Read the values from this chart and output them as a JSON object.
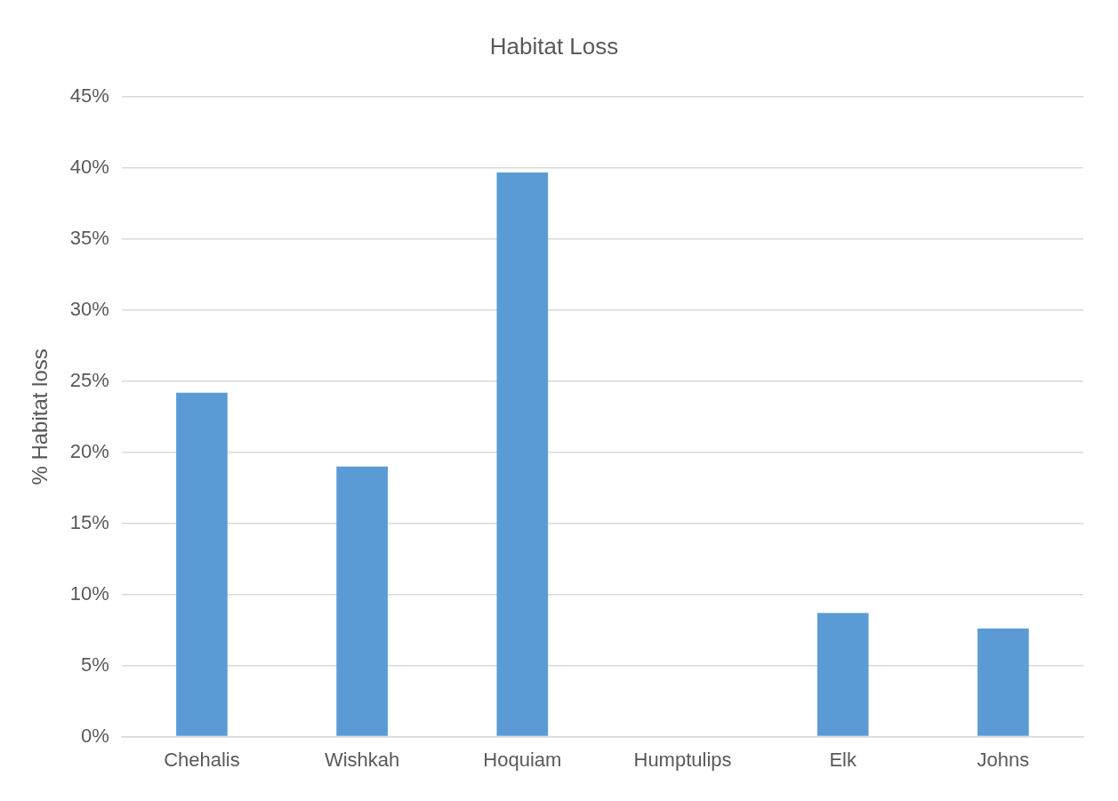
{
  "chart_data": {
    "type": "bar",
    "title": "Habitat Loss",
    "ylabel": "% Habitat loss",
    "categories": [
      "Chehalis",
      "Wishkah",
      "Hoquiam",
      "Humptulips",
      "Elk",
      "Johns"
    ],
    "values": [
      24.2,
      19.0,
      39.7,
      0,
      8.7,
      7.6
    ],
    "color": "#5b9bd5",
    "ylim": [
      0,
      45
    ],
    "yticks": [
      {
        "value": 0,
        "label": "0%"
      },
      {
        "value": 5,
        "label": "5%"
      },
      {
        "value": 10,
        "label": "10%"
      },
      {
        "value": 15,
        "label": "15%"
      },
      {
        "value": 20,
        "label": "20%"
      },
      {
        "value": 25,
        "label": "25%"
      },
      {
        "value": 30,
        "label": "30%"
      },
      {
        "value": 35,
        "label": "35%"
      },
      {
        "value": 40,
        "label": "40%"
      },
      {
        "value": 45,
        "label": "45%"
      }
    ],
    "grid": "y",
    "legend": false
  }
}
